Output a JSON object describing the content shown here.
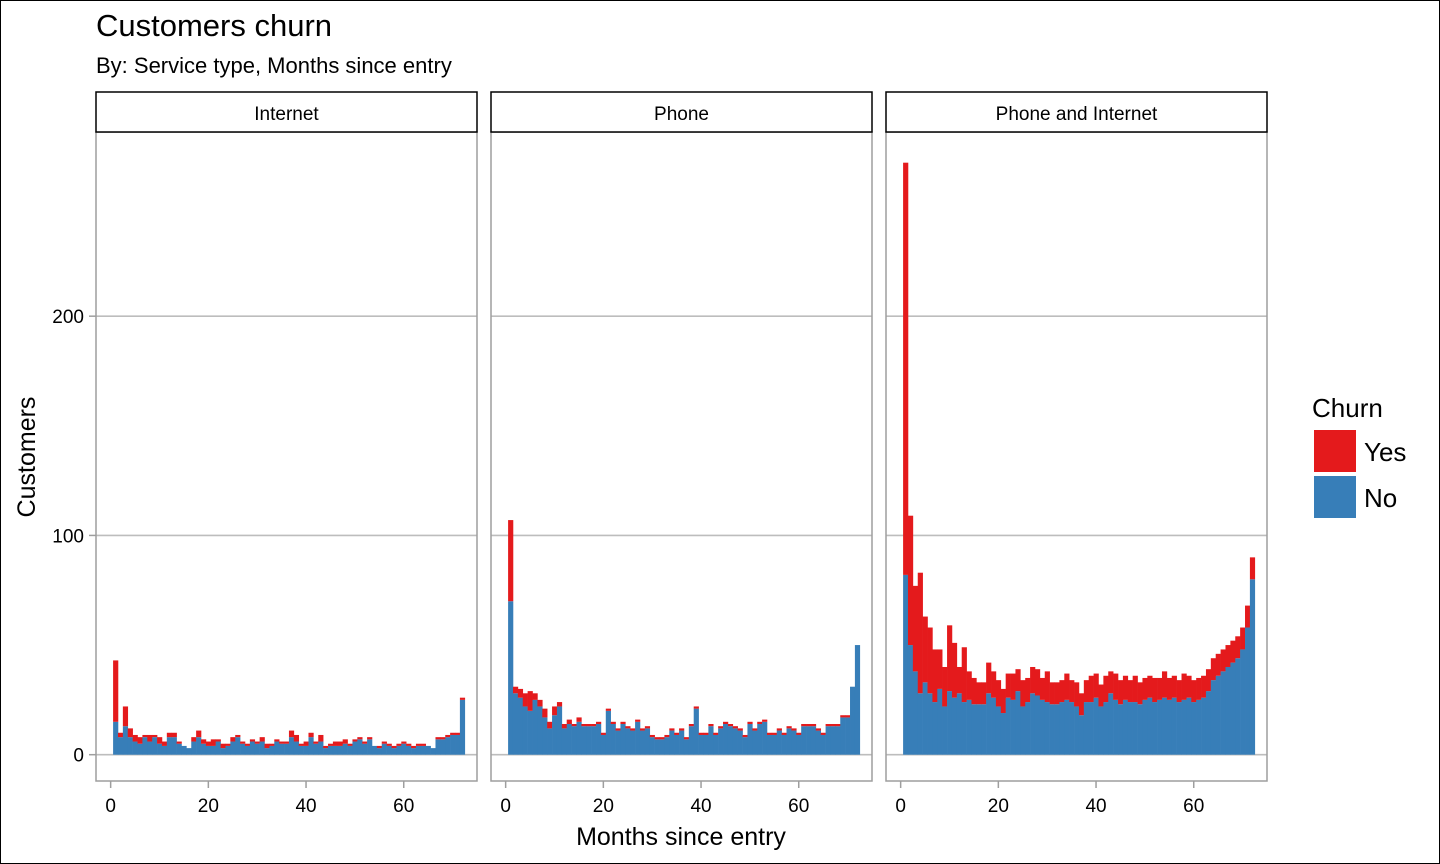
{
  "title": "Customers churn",
  "subtitle": "By: Service type, Months since entry",
  "chart_data": {
    "type": "bar",
    "stacked": true,
    "facet_by": "Service type",
    "title": "Customers churn",
    "subtitle": "By: Service type, Months since entry",
    "xlabel": "Months since entry",
    "ylabel": "Customers",
    "xlim": [
      -3,
      75
    ],
    "ylim": [
      -12,
      284
    ],
    "xticks": [
      0,
      20,
      40,
      60
    ],
    "yticks": [
      0,
      100,
      200
    ],
    "grid": "horizontal",
    "legend": {
      "title": "Churn",
      "position": "right",
      "entries": [
        {
          "label": "Yes",
          "color": "#e41a1c"
        },
        {
          "label": "No",
          "color": "#377eb8"
        }
      ]
    },
    "x": [
      1,
      2,
      3,
      4,
      5,
      6,
      7,
      8,
      9,
      10,
      11,
      12,
      13,
      14,
      15,
      16,
      17,
      18,
      19,
      20,
      21,
      22,
      23,
      24,
      25,
      26,
      27,
      28,
      29,
      30,
      31,
      32,
      33,
      34,
      35,
      36,
      37,
      38,
      39,
      40,
      41,
      42,
      43,
      44,
      45,
      46,
      47,
      48,
      49,
      50,
      51,
      52,
      53,
      54,
      55,
      56,
      57,
      58,
      59,
      60,
      61,
      62,
      63,
      64,
      65,
      66,
      67,
      68,
      69,
      70,
      71,
      72
    ],
    "panels": [
      {
        "name": "Internet",
        "series": [
          {
            "name": "No",
            "values": [
              15,
              8,
              13,
              8,
              6,
              5,
              8,
              6,
              8,
              5,
              4,
              8,
              8,
              5,
              4,
              3,
              6,
              8,
              5,
              4,
              4,
              6,
              3,
              4,
              6,
              8,
              5,
              4,
              6,
              5,
              6,
              3,
              4,
              6,
              5,
              5,
              8,
              6,
              4,
              4,
              8,
              5,
              6,
              3,
              4,
              4,
              4,
              5,
              4,
              6,
              7,
              5,
              7,
              4,
              3,
              5,
              4,
              3,
              4,
              5,
              4,
              3,
              4,
              4,
              4,
              3,
              7,
              7,
              8,
              9,
              9,
              25
            ]
          },
          {
            "name": "Yes",
            "values": [
              28,
              2,
              9,
              4,
              3,
              3,
              1,
              3,
              1,
              3,
              2,
              2,
              2,
              1,
              0,
              0,
              2,
              3,
              2,
              2,
              3,
              1,
              2,
              1,
              2,
              1,
              1,
              1,
              1,
              1,
              2,
              2,
              1,
              1,
              1,
              1,
              3,
              3,
              1,
              2,
              2,
              1,
              3,
              1,
              1,
              2,
              2,
              2,
              1,
              1,
              1,
              1,
              1,
              0,
              1,
              1,
              1,
              1,
              1,
              1,
              1,
              1,
              1,
              1,
              0,
              0,
              1,
              1,
              1,
              1,
              1,
              1
            ]
          }
        ]
      },
      {
        "name": "Phone",
        "series": [
          {
            "name": "No",
            "values": [
              70,
              28,
              26,
              22,
              20,
              25,
              22,
              17,
              12,
              18,
              22,
              12,
              14,
              13,
              15,
              13,
              13,
              13,
              14,
              9,
              20,
              14,
              11,
              14,
              12,
              11,
              15,
              11,
              12,
              8,
              7,
              7,
              8,
              11,
              9,
              11,
              7,
              13,
              21,
              9,
              9,
              13,
              9,
              12,
              14,
              13,
              12,
              11,
              8,
              14,
              11,
              14,
              15,
              9,
              9,
              11,
              9,
              12,
              11,
              9,
              13,
              13,
              13,
              11,
              9,
              13,
              13,
              13,
              17,
              17,
              31,
              50
            ]
          },
          {
            "name": "Yes",
            "values": [
              37,
              3,
              4,
              6,
              9,
              3,
              3,
              4,
              3,
              4,
              2,
              2,
              2,
              1,
              2,
              1,
              1,
              1,
              1,
              1,
              1,
              1,
              1,
              1,
              1,
              1,
              1,
              1,
              1,
              1,
              1,
              1,
              1,
              1,
              1,
              1,
              1,
              1,
              1,
              1,
              1,
              1,
              1,
              1,
              1,
              1,
              1,
              1,
              1,
              1,
              1,
              1,
              1,
              1,
              1,
              1,
              1,
              1,
              1,
              1,
              1,
              1,
              1,
              1,
              1,
              1,
              1,
              1,
              1,
              1,
              0,
              0
            ]
          }
        ]
      },
      {
        "name": "Phone and Internet",
        "series": [
          {
            "name": "No",
            "values": [
              82,
              50,
              38,
              28,
              33,
              28,
              24,
              30,
              22,
              29,
              26,
              28,
              24,
              25,
              23,
              23,
              23,
              28,
              26,
              22,
              19,
              26,
              25,
              29,
              22,
              24,
              28,
              27,
              25,
              24,
              23,
              23,
              24,
              25,
              24,
              22,
              18,
              24,
              24,
              26,
              22,
              24,
              28,
              25,
              23,
              25,
              24,
              24,
              23,
              25,
              26,
              24,
              25,
              26,
              25,
              26,
              24,
              25,
              26,
              24,
              25,
              26,
              29,
              34,
              36,
              38,
              40,
              42,
              44,
              48,
              58,
              80
            ]
          },
          {
            "name": "Yes",
            "values": [
              188,
              59,
              39,
              55,
              30,
              30,
              24,
              18,
              18,
              30,
              25,
              12,
              25,
              13,
              12,
              10,
              10,
              14,
              12,
              12,
              11,
              11,
              12,
              10,
              12,
              11,
              12,
              12,
              10,
              14,
              10,
              10,
              10,
              12,
              10,
              11,
              10,
              10,
              12,
              11,
              10,
              12,
              10,
              12,
              11,
              11,
              10,
              12,
              10,
              10,
              10,
              11,
              10,
              12,
              10,
              10,
              10,
              12,
              10,
              10,
              10,
              10,
              10,
              10,
              10,
              10,
              10,
              10,
              10,
              10,
              10,
              10
            ]
          }
        ]
      }
    ]
  }
}
